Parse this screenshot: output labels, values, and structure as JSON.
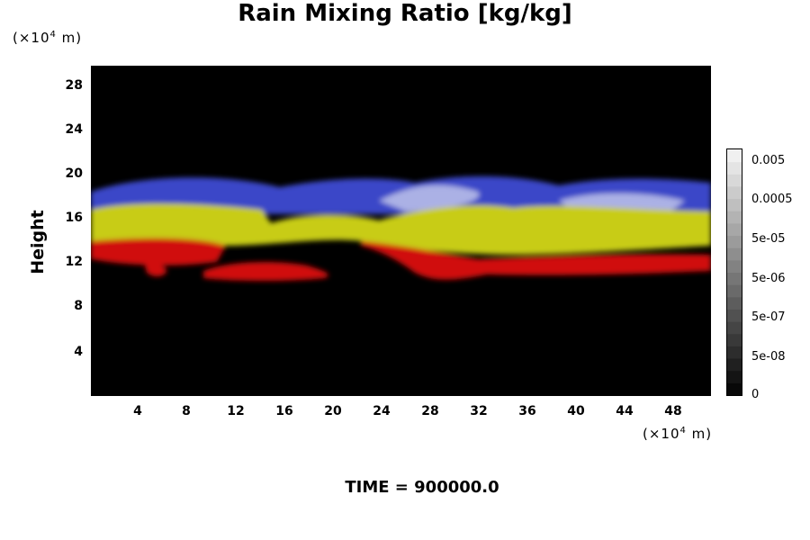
{
  "chart_data": {
    "type": "heatmap",
    "title": "Rain Mixing Ratio [kg/kg]",
    "ylabel": "Height",
    "y_unit": {
      "prefix": "(×10",
      "exp": "4",
      "suffix": " m)"
    },
    "x_unit": {
      "prefix": "(×10",
      "exp": "4",
      "suffix": " m)"
    },
    "x_ticks": [
      "4",
      "8",
      "12",
      "16",
      "20",
      "24",
      "28",
      "32",
      "36",
      "40",
      "44",
      "48"
    ],
    "y_ticks": [
      "28",
      "24",
      "20",
      "16",
      "12",
      "8",
      "4"
    ],
    "colorbar_labels": [
      "0.005",
      "0.0005",
      "5e-05",
      "5e-06",
      "5e-07",
      "5e-08",
      "0"
    ],
    "time_label": "TIME = 900000.0",
    "colors": {
      "background": "#000000",
      "blue": "#3a47c8",
      "yellow": "#c8cc18",
      "red": "#d01010",
      "lavender": "#b8bce8"
    }
  }
}
